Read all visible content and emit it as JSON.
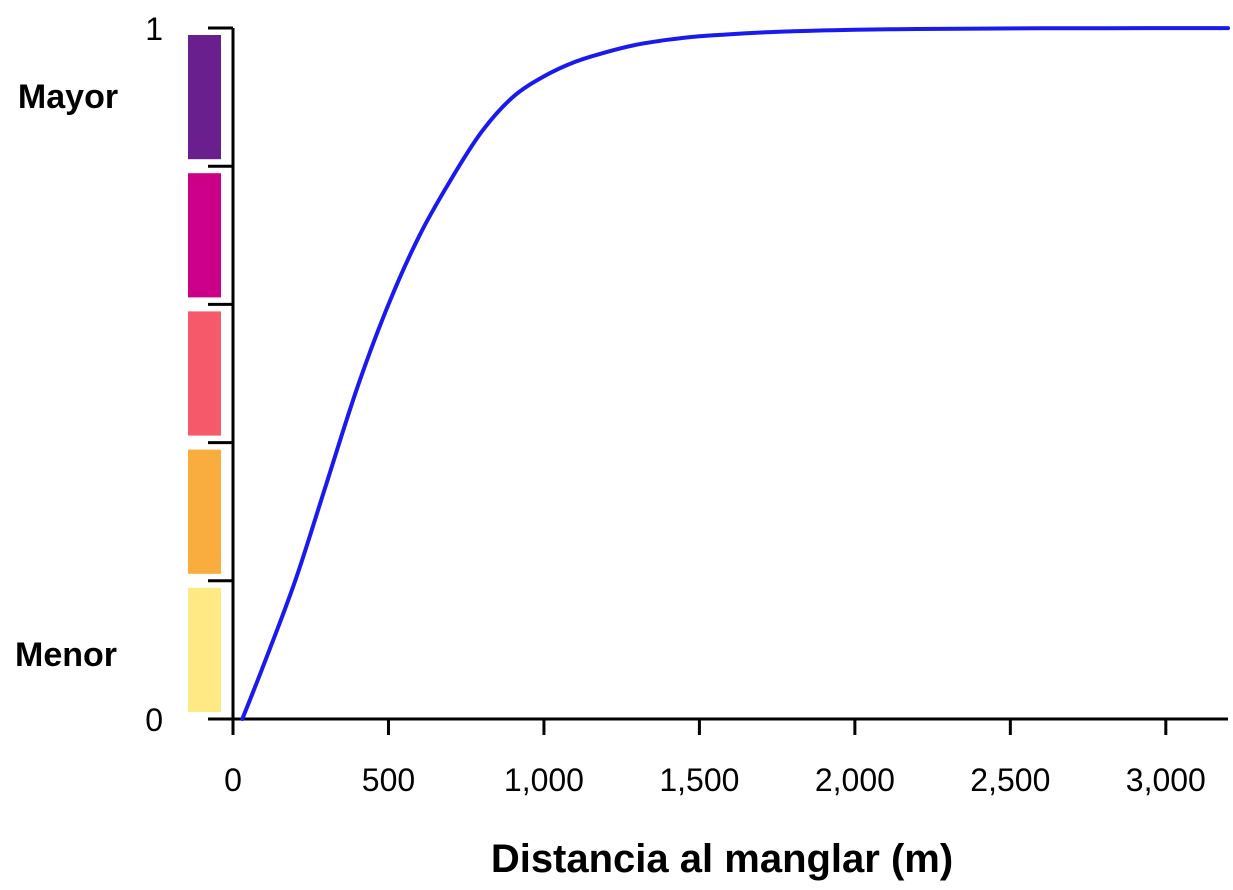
{
  "chart_data": {
    "type": "line",
    "title": "",
    "xlabel": "Distancia al manglar (m)",
    "ylabel": "",
    "xlim": [
      0,
      3200
    ],
    "ylim": [
      0,
      1
    ],
    "x_ticks": [
      0,
      500,
      1000,
      1500,
      2000,
      2500,
      3000
    ],
    "x_tick_labels": [
      "0",
      "500",
      "1,000",
      "1,500",
      "2,000",
      "2,500",
      "3,000"
    ],
    "y_ticks": [
      0,
      1
    ],
    "y_tick_labels": [
      "0",
      "1"
    ],
    "grid": false,
    "color_scale": {
      "high_label": "Mayor",
      "low_label": "Menor",
      "colors_top_to_bottom": [
        "#6a1f8f",
        "#cc0088",
        "#f5596a",
        "#f8ad3e",
        "#ffe985"
      ]
    },
    "series": [
      {
        "color": "#1a1aee",
        "x": [
          30,
          100,
          200,
          300,
          400,
          500,
          600,
          700,
          800,
          900,
          1000,
          1100,
          1200,
          1300,
          1400,
          1500,
          1600,
          1700,
          1800,
          1900,
          2000,
          2200,
          2400,
          2600,
          2800,
          3000,
          3200
        ],
        "y": [
          0.0,
          0.08,
          0.2,
          0.34,
          0.48,
          0.6,
          0.7,
          0.78,
          0.85,
          0.9,
          0.93,
          0.951,
          0.965,
          0.976,
          0.983,
          0.988,
          0.991,
          0.9935,
          0.9952,
          0.9965,
          0.9975,
          0.9985,
          0.9991,
          0.9995,
          0.9997,
          0.9998,
          0.9998
        ]
      }
    ]
  }
}
